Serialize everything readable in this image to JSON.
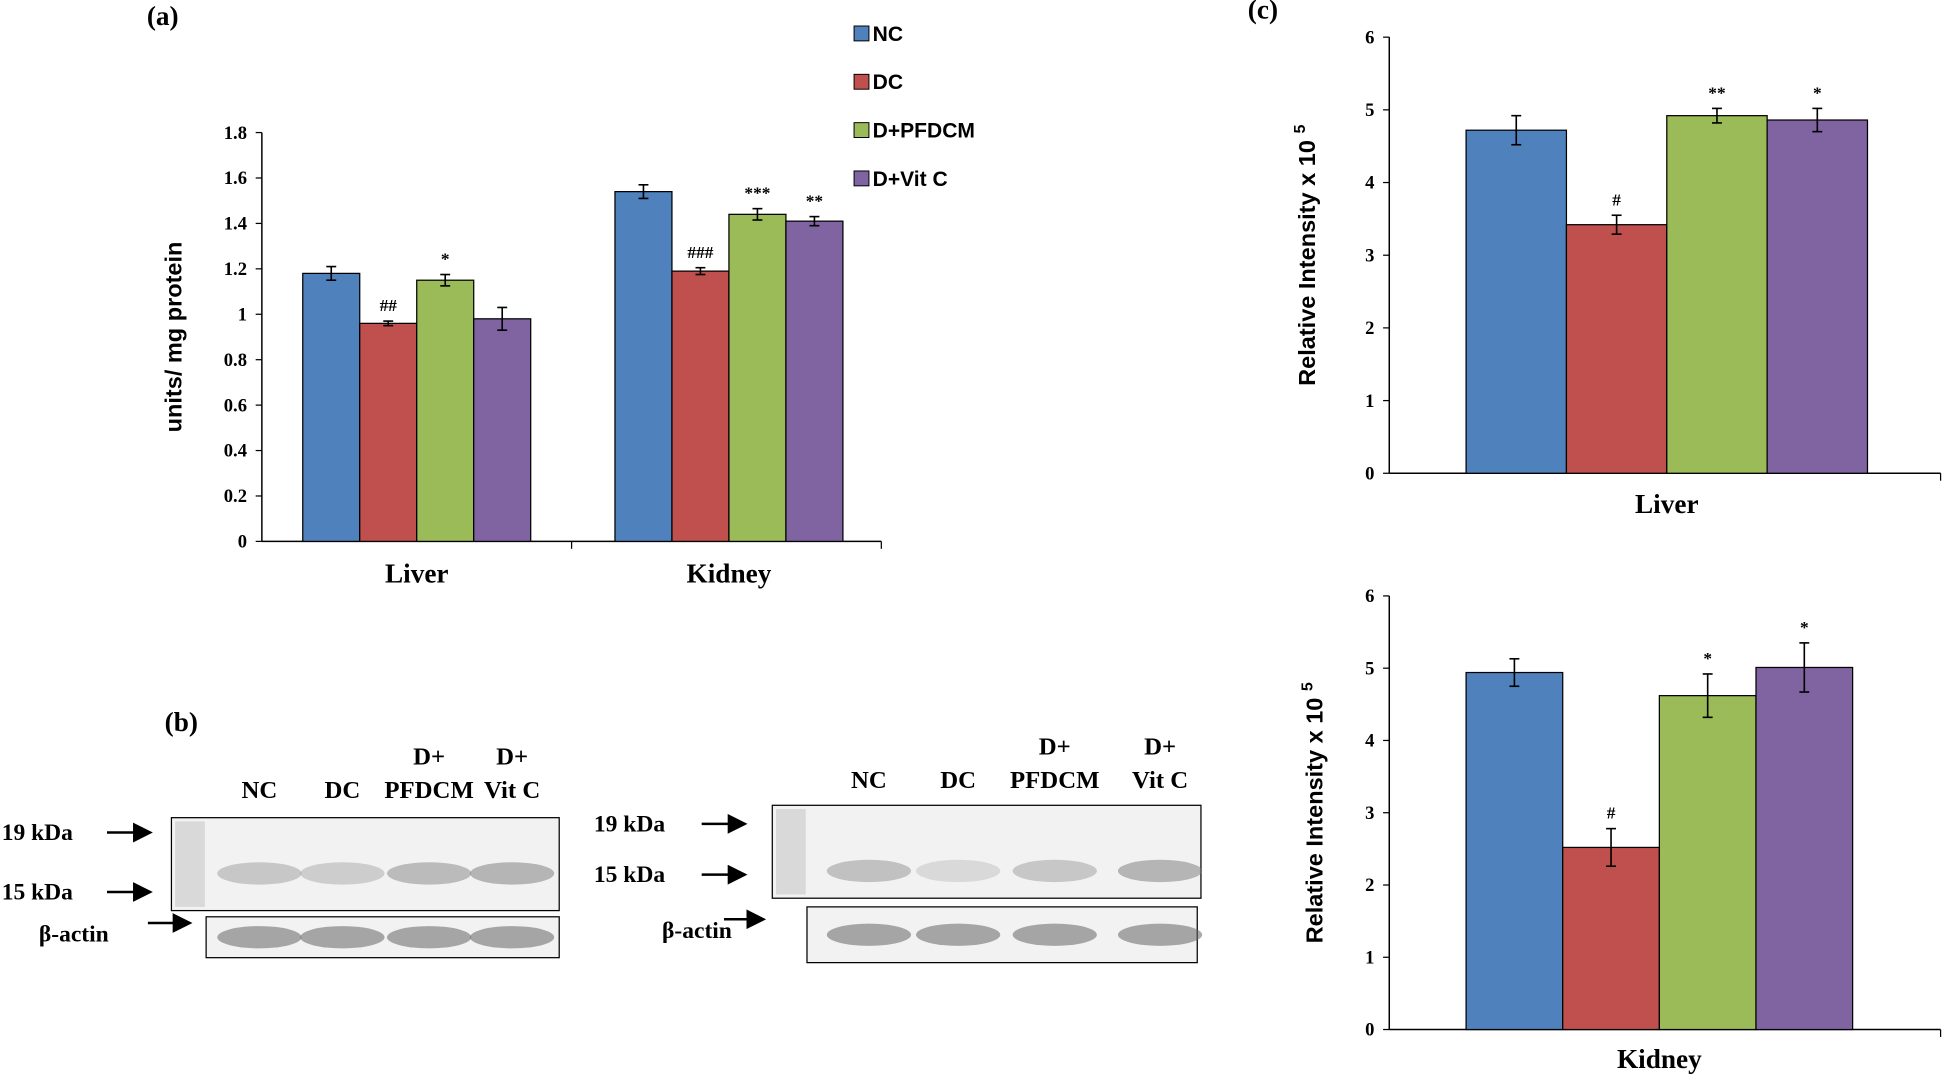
{
  "chart_data": [
    {
      "type": "bar",
      "panel": "(a)",
      "ylabel": "units/ mg protein",
      "categories": [
        "Liver",
        "Kidney"
      ],
      "series": [
        {
          "name": "NC",
          "color": "#4f81bd",
          "values": [
            1.18,
            1.54
          ],
          "errors": [
            0.03,
            0.03
          ],
          "annotations": [
            null,
            null
          ]
        },
        {
          "name": "DC",
          "color": "#c0504d",
          "values": [
            0.96,
            1.19
          ],
          "errors": [
            0.01,
            0.015
          ],
          "annotations": [
            "##",
            "###"
          ]
        },
        {
          "name": "D+PFDCM",
          "color": "#9bbb59",
          "values": [
            1.15,
            1.44
          ],
          "errors": [
            0.025,
            0.025
          ],
          "annotations": [
            "*",
            "***"
          ]
        },
        {
          "name": "D+Vit C",
          "color": "#8064a2",
          "values": [
            0.98,
            1.41
          ],
          "errors": [
            0.05,
            0.02
          ],
          "annotations": [
            null,
            "**"
          ]
        }
      ],
      "ylim": [
        0,
        1.8
      ],
      "yticks": [
        0,
        0.2,
        0.4,
        0.6,
        0.8,
        1,
        1.2,
        1.4,
        1.6,
        1.8
      ],
      "legend": true
    },
    {
      "type": "bar",
      "panel": "(c)",
      "ylabel": "Relative Intensity x 10",
      "ylabel_exponent": "5",
      "categories": [
        "Liver"
      ],
      "series": [
        {
          "color": "#4f81bd",
          "values": [
            4.72
          ],
          "errors": [
            0.2
          ],
          "annotations": [
            null
          ]
        },
        {
          "color": "#c0504d",
          "values": [
            3.42
          ],
          "errors": [
            0.13
          ],
          "annotations": [
            "#"
          ]
        },
        {
          "color": "#9bbb59",
          "values": [
            4.92
          ],
          "errors": [
            0.1
          ],
          "annotations": [
            "**"
          ]
        },
        {
          "color": "#8064a2",
          "values": [
            4.86
          ],
          "errors": [
            0.16
          ],
          "annotations": [
            "*"
          ]
        }
      ],
      "ylim": [
        0,
        6
      ],
      "yticks": [
        0,
        1,
        2,
        3,
        4,
        5,
        6
      ],
      "legend": false
    },
    {
      "type": "bar",
      "ylabel": "Relative Intensity x 10",
      "ylabel_exponent": "5",
      "categories": [
        "Kidney"
      ],
      "series": [
        {
          "color": "#4f81bd",
          "values": [
            4.94
          ],
          "errors": [
            0.19
          ],
          "annotations": [
            null
          ]
        },
        {
          "color": "#c0504d",
          "values": [
            2.52
          ],
          "errors": [
            0.26
          ],
          "annotations": [
            "#"
          ]
        },
        {
          "color": "#9bbb59",
          "values": [
            4.62
          ],
          "errors": [
            0.3
          ],
          "annotations": [
            "*"
          ]
        },
        {
          "color": "#8064a2",
          "values": [
            5.01
          ],
          "errors": [
            0.34
          ],
          "annotations": [
            "*"
          ]
        }
      ],
      "ylim": [
        0,
        6
      ],
      "yticks": [
        0,
        1,
        2,
        3,
        4,
        5,
        6
      ],
      "legend": false
    }
  ],
  "blots": {
    "label": "(b)",
    "panels": [
      {
        "lanes": [
          [
            "NC"
          ],
          [
            "DC"
          ],
          [
            "D+",
            "PFDCM"
          ],
          [
            "D+",
            "Vit C"
          ]
        ],
        "markers": [
          "19 kDa",
          "15 kDa"
        ],
        "control": "β-actin"
      },
      {
        "lanes": [
          [
            "NC"
          ],
          [
            "DC"
          ],
          [
            "D+",
            "PFDCM"
          ],
          [
            "D+",
            "Vit C"
          ]
        ],
        "markers": [
          "19 kDa",
          "15 kDa"
        ],
        "control": "β-actin"
      }
    ]
  }
}
